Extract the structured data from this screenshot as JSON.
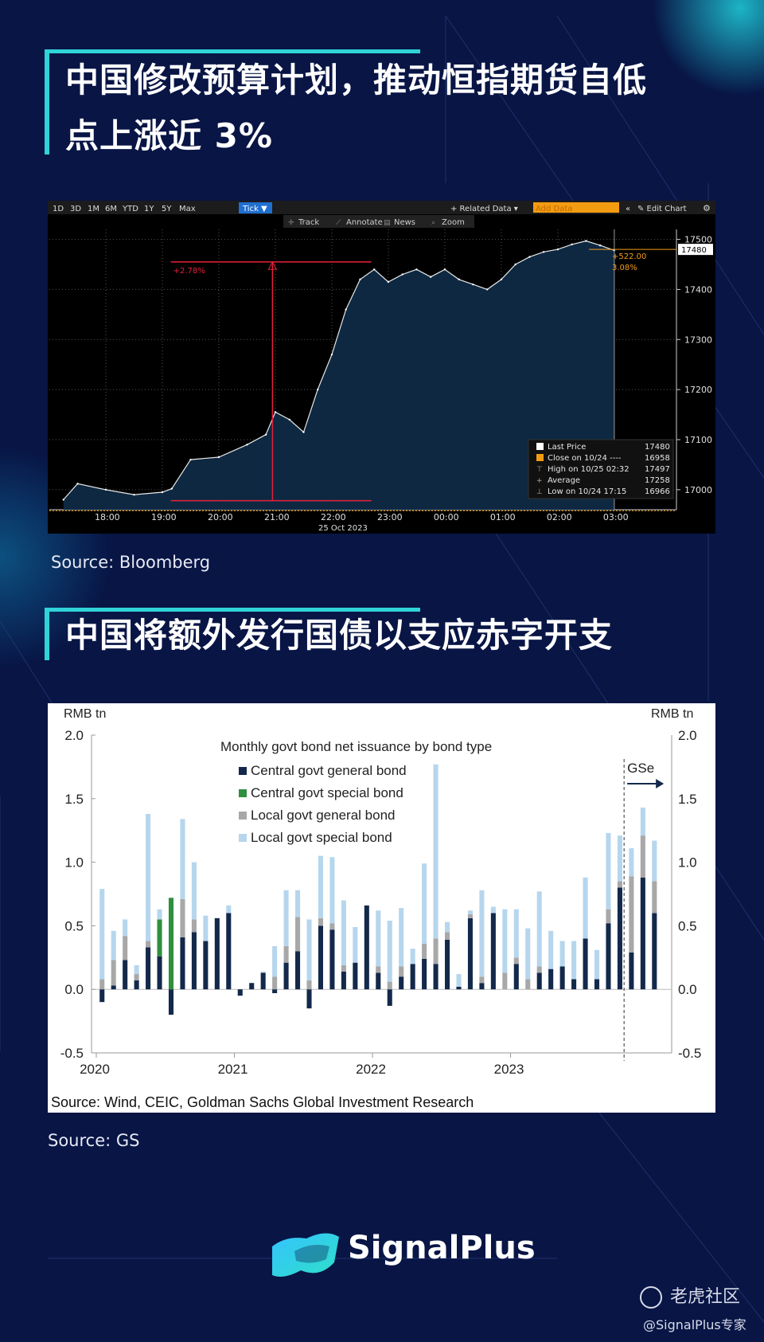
{
  "section1": {
    "title_line1": "中国修改预算计划，推动恒指期货自低",
    "title_line2": "点上涨近 3%",
    "source": "Source: Bloomberg"
  },
  "section2": {
    "title": "中国将额外发行国债以支应赤字开支",
    "source": "Source: GS"
  },
  "brand": {
    "name": "SignalPlus",
    "watermark": "老虎社区",
    "handle": "@SignalPlus专家"
  },
  "colors": {
    "background": "#081545",
    "accent": "#2fd3d8",
    "bbg_orange": "#f39c12",
    "bbg_red": "#e8203a",
    "central_general": "#13294b",
    "central_special": "#2f8f3e",
    "local_general": "#a8a8a8",
    "local_special": "#b6d6ee"
  },
  "bloomberg": {
    "periods": [
      "1D",
      "3D",
      "1M",
      "6M",
      "YTD",
      "1Y",
      "5Y",
      "Max"
    ],
    "active_period": "Tick",
    "related_data": "+ Related Data ▾",
    "add_data": "Add Data",
    "edit_chart": "✎ Edit Chart",
    "tools": [
      "Track",
      "Annotate",
      "News",
      "Zoom"
    ],
    "change_label": "+2.78%",
    "last_change": "+522.00",
    "last_change_pct": "3.08%",
    "last_price_tag": "17480",
    "legend": [
      {
        "label": "Last Price",
        "value": "17480",
        "marker": "white-square"
      },
      {
        "label": "Close on 10/24 ----",
        "value": "16958",
        "marker": "orange-square"
      },
      {
        "label": "High on 10/25 02:32",
        "value": "17497",
        "marker": "high"
      },
      {
        "label": "Average",
        "value": "17258",
        "marker": "average"
      },
      {
        "label": "Low on 10/24 17:15",
        "value": "16966",
        "marker": "low"
      }
    ],
    "date_label": "25 Oct 2023"
  },
  "chart_data": [
    {
      "type": "line",
      "title": "",
      "xlabel": "25 Oct 2023",
      "ylabel": "",
      "x_ticks": [
        "18:00",
        "19:00",
        "20:00",
        "21:00",
        "22:00",
        "23:00",
        "00:00",
        "01:00",
        "02:00",
        "03:00"
      ],
      "y_ticks": [
        "17000",
        "17100",
        "17200",
        "17300",
        "17400",
        "17500"
      ],
      "ylim": [
        16960,
        17520
      ],
      "grid": true,
      "series": [
        {
          "x": [
            "17:15",
            "17:30",
            "18:00",
            "18:30",
            "19:00",
            "19:10",
            "19:30",
            "20:00",
            "20:30",
            "20:50",
            "21:00",
            "21:15",
            "21:30",
            "21:45",
            "22:00",
            "22:15",
            "22:30",
            "22:45",
            "23:00",
            "23:15",
            "23:30",
            "23:45",
            "00:00",
            "00:15",
            "00:30",
            "00:45",
            "01:00",
            "01:15",
            "01:30",
            "01:45",
            "02:00",
            "02:15",
            "02:30",
            "02:45",
            "03:00"
          ],
          "values": [
            16980,
            17012,
            17000,
            16990,
            16995,
            17002,
            17060,
            17065,
            17090,
            17110,
            17155,
            17140,
            17115,
            17200,
            17270,
            17360,
            17420,
            17440,
            17415,
            17430,
            17440,
            17425,
            17440,
            17420,
            17410,
            17400,
            17420,
            17450,
            17465,
            17475,
            17480,
            17490,
            17497,
            17488,
            17478
          ]
        }
      ],
      "reference_lines": {
        "previous_close": 16958,
        "average": 17258,
        "high": 17497,
        "low": 16966
      }
    },
    {
      "type": "bar",
      "title": "Monthly govt bond net issuance by bond type",
      "ylabel_left": "RMB tn",
      "ylabel_right": "RMB tn",
      "x_ticks": [
        "2020",
        "2021",
        "2022",
        "2023"
      ],
      "y_ticks": [
        "2.0",
        "1.5",
        "1.0",
        "0.5",
        "0.0",
        "-0.5"
      ],
      "ylim": [
        -0.5,
        2.0
      ],
      "forecast_label": "GSe",
      "source": "Source: Wind, CEIC, Goldman Sachs Global Investment Research",
      "legend": [
        "Central govt general bond",
        "Central govt special bond",
        "Local govt general bond",
        "Local govt special bond"
      ],
      "categories": [
        "2020-01",
        "2020-02",
        "2020-03",
        "2020-04",
        "2020-05",
        "2020-06",
        "2020-07",
        "2020-08",
        "2020-09",
        "2020-10",
        "2020-11",
        "2020-12",
        "2021-01",
        "2021-02",
        "2021-03",
        "2021-04",
        "2021-05",
        "2021-06",
        "2021-07",
        "2021-08",
        "2021-09",
        "2021-10",
        "2021-11",
        "2021-12",
        "2022-01",
        "2022-02",
        "2022-03",
        "2022-04",
        "2022-05",
        "2022-06",
        "2022-07",
        "2022-08",
        "2022-09",
        "2022-10",
        "2022-11",
        "2022-12",
        "2023-01",
        "2023-02",
        "2023-03",
        "2023-04",
        "2023-05",
        "2023-06",
        "2023-07",
        "2023-08",
        "2023-09",
        "2023-10",
        "2023-11",
        "2023-12",
        "2024-01",
        "2024-02"
      ],
      "series": [
        {
          "name": "Central govt general bond",
          "values": [
            -0.1,
            0.03,
            0.23,
            0.07,
            0.33,
            0.26,
            -0.2,
            0.41,
            0.45,
            0.38,
            0.56,
            0.6,
            -0.05,
            0.05,
            0.13,
            -0.03,
            0.21,
            0.3,
            -0.15,
            0.5,
            0.47,
            0.14,
            0.21,
            0.66,
            0.13,
            -0.13,
            0.1,
            0.2,
            0.24,
            0.2,
            0.39,
            0.02,
            0.56,
            0.05,
            0.6,
            0.0,
            0.2,
            0.0,
            0.13,
            0.16,
            0.18,
            0.08,
            0.4,
            0.08,
            0.52,
            0.8,
            0.29,
            0.88,
            0.6,
            0.0
          ]
        },
        {
          "name": "Central govt special bond",
          "values": [
            0,
            0,
            0,
            0,
            0,
            0.29,
            0.72,
            0,
            0,
            0,
            0,
            0,
            0,
            0,
            0,
            0,
            0,
            0,
            0,
            0,
            0,
            0,
            0,
            0,
            0,
            0,
            0,
            0,
            0,
            0,
            0,
            0,
            0,
            0,
            0,
            0,
            0,
            0,
            0,
            0,
            0,
            0,
            0,
            0,
            0,
            0,
            0,
            0,
            0,
            0
          ]
        },
        {
          "name": "Local govt general bond",
          "values": [
            0.08,
            0.2,
            0.19,
            0.05,
            0.05,
            0,
            0,
            0.3,
            0.1,
            0,
            0,
            0,
            0,
            0,
            0,
            0.1,
            0.13,
            0.27,
            0.07,
            0.06,
            0.05,
            0.05,
            0,
            0,
            0.05,
            0.06,
            0.08,
            0,
            0.12,
            0.2,
            0.06,
            0,
            0.03,
            0.05,
            0,
            0.13,
            0.05,
            0.08,
            0.05,
            0,
            0,
            0,
            0,
            0,
            0.11,
            0.05,
            0.6,
            0.33,
            0.25,
            0
          ]
        },
        {
          "name": "Local govt special bond",
          "values": [
            0.71,
            0.23,
            0.13,
            0.07,
            1.0,
            0.08,
            0,
            0.63,
            0.45,
            0.2,
            0,
            0.06,
            0,
            0,
            0.01,
            0.24,
            0.44,
            0.21,
            0.48,
            0.49,
            0.52,
            0.51,
            0.28,
            0,
            0.44,
            0.48,
            0.46,
            0.12,
            0.63,
            1.37,
            0.08,
            0.1,
            0.03,
            0.68,
            0.05,
            0.5,
            0.38,
            0.4,
            0.59,
            0.3,
            0.2,
            0.3,
            0.48,
            0.23,
            0.6,
            0.36,
            0.22,
            0.22,
            0.32,
            0
          ]
        }
      ]
    }
  ]
}
